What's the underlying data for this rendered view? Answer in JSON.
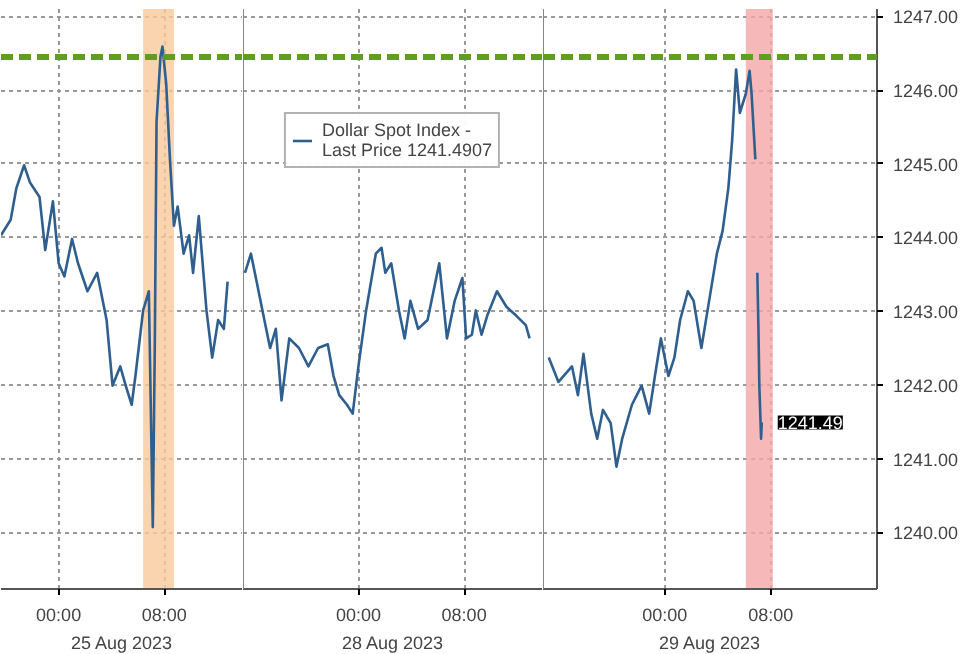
{
  "chart_data": [
    {
      "type": "line",
      "xlabel": "25 Aug 2023",
      "series": [
        {
          "color": "#2f5f8f",
          "x": [
            "2023-08-24T19:38",
            "2023-08-24T20:22",
            "2023-08-24T20:48",
            "2023-08-24T21:23",
            "2023-08-24T21:49",
            "2023-08-24T22:33",
            "2023-08-24T22:59",
            "2023-08-24T23:34",
            "2023-08-25T00:00",
            "2023-08-25T00:26",
            "2023-08-25T01:01",
            "2023-08-25T01:28",
            "2023-08-25T02:11",
            "2023-08-25T02:55",
            "2023-08-25T03:38",
            "2023-08-25T04:05",
            "2023-08-25T04:40",
            "2023-08-25T05:05",
            "2023-08-25T05:32",
            "2023-08-25T05:49",
            "2023-08-25T06:24",
            "2023-08-25T06:50",
            "2023-08-25T07:08",
            "2023-08-25T07:17",
            "2023-08-25T07:25",
            "2023-08-25T07:43",
            "2023-08-25T07:52",
            "2023-08-25T08:09",
            "2023-08-25T08:26",
            "2023-08-25T08:44",
            "2023-08-25T09:01",
            "2023-08-25T09:28",
            "2023-08-25T09:53",
            "2023-08-25T10:11",
            "2023-08-25T10:37",
            "2023-08-25T11:12",
            "2023-08-25T11:38",
            "2023-08-25T12:05",
            "2023-08-25T12:31",
            "2023-08-25T12:48"
          ],
          "values": [
            1244.03,
            1244.24,
            1244.67,
            1244.98,
            1244.75,
            1244.55,
            1243.83,
            1244.49,
            1243.65,
            1243.47,
            1243.98,
            1243.65,
            1243.27,
            1243.52,
            1242.88,
            1241.99,
            1242.25,
            1241.99,
            1241.73,
            1242.12,
            1243.01,
            1243.27,
            1240.07,
            1242.5,
            1245.57,
            1246.46,
            1246.59,
            1246.08,
            1245.06,
            1244.16,
            1244.42,
            1243.78,
            1244.03,
            1243.52,
            1244.29,
            1243.01,
            1242.37,
            1242.88,
            1242.76,
            1243.4
          ]
        }
      ],
      "xlim": [
        "2023-08-24T19:38",
        "2023-08-25T13:58"
      ],
      "xticks": [
        {
          "value": "2023-08-25T00:00",
          "label": "00:00"
        },
        {
          "value": "2023-08-25T08:00",
          "label": "08:00"
        }
      ],
      "ylim": [
        1239.23,
        1247.1
      ],
      "yticks": [
        1240,
        1241,
        1242,
        1243,
        1244,
        1245,
        1246,
        1247
      ],
      "bands": [
        {
          "axis": "x",
          "from": "2023-08-25T06:24",
          "to": "2023-08-25T08:44",
          "label": null,
          "color": "#f8c99a"
        }
      ],
      "ref_lines": [
        {
          "axis": "y",
          "value": 1246.45,
          "label": null,
          "color": "#5f9e1f",
          "line_style": "dashed"
        }
      ],
      "tick_labels": "x",
      "grid": true,
      "line_style": "solid"
    },
    {
      "type": "line",
      "xlabel": "28 Aug 2023",
      "series": [
        {
          "name": "Dollar Spot Index - Last Price 1241.4907",
          "color": "#2f5f8f",
          "x": [
            "2023-08-27T15:25",
            "2023-08-27T15:52",
            "2023-08-27T16:18",
            "2023-08-27T16:53",
            "2023-08-27T17:19",
            "2023-08-27T17:45",
            "2023-08-27T18:11",
            "2023-08-27T18:46",
            "2023-08-27T19:30",
            "2023-08-27T20:13",
            "2023-08-27T20:57",
            "2023-08-27T21:41",
            "2023-08-27T22:07",
            "2023-08-27T22:33",
            "2023-08-27T23:08",
            "2023-08-27T23:34",
            "2023-08-28T00:00",
            "2023-08-28T00:35",
            "2023-08-28T01:19",
            "2023-08-28T01:45",
            "2023-08-28T02:02",
            "2023-08-28T02:29",
            "2023-08-28T03:04",
            "2023-08-28T03:30",
            "2023-08-28T03:56",
            "2023-08-28T04:31",
            "2023-08-28T05:14",
            "2023-08-28T06:07",
            "2023-08-28T06:42",
            "2023-08-28T07:17",
            "2023-08-28T07:52",
            "2023-08-28T08:09",
            "2023-08-28T08:35",
            "2023-08-28T08:53",
            "2023-08-28T09:19",
            "2023-08-28T09:45",
            "2023-08-28T10:29",
            "2023-08-28T11:12",
            "2023-08-28T11:56",
            "2023-08-28T12:40",
            "2023-08-28T12:57"
          ],
          "values": [
            1243.52,
            1243.78,
            1243.4,
            1242.88,
            1242.5,
            1242.76,
            1241.79,
            1242.63,
            1242.5,
            1242.25,
            1242.5,
            1242.55,
            1242.12,
            1241.86,
            1241.73,
            1241.61,
            1242.25,
            1243.01,
            1243.78,
            1243.86,
            1243.52,
            1243.65,
            1243.01,
            1242.63,
            1243.14,
            1242.76,
            1242.88,
            1243.65,
            1242.63,
            1243.14,
            1243.45,
            1242.63,
            1242.68,
            1243.01,
            1242.68,
            1242.94,
            1243.27,
            1243.06,
            1242.94,
            1242.81,
            1242.63
          ]
        }
      ],
      "xlim": [
        "2023-08-27T15:16",
        "2023-08-28T13:58"
      ],
      "xticks": [
        {
          "value": "2023-08-28T00:00",
          "label": "00:00"
        },
        {
          "value": "2023-08-28T08:00",
          "label": "08:00"
        }
      ],
      "ylim": [
        1239.23,
        1247.1
      ],
      "yticks": [
        1240,
        1241,
        1242,
        1243,
        1244,
        1245,
        1246,
        1247
      ],
      "ref_lines": [
        {
          "axis": "y",
          "value": 1246.45,
          "label": null,
          "color": "#5f9e1f",
          "line_style": "dashed"
        }
      ],
      "tick_labels": "x",
      "grid": true,
      "legend": "top",
      "line_style": "solid"
    },
    {
      "type": "line",
      "xlabel": "29 Aug 2023",
      "series": [
        {
          "color": "#2f5f8f",
          "x": [
            "2023-08-28T15:16",
            "2023-08-28T16:00",
            "2023-08-28T17:01",
            "2023-08-28T17:28",
            "2023-08-28T17:53",
            "2023-08-28T18:28",
            "2023-08-28T18:55",
            "2023-08-28T19:21",
            "2023-08-28T19:56",
            "2023-08-28T20:22",
            "2023-08-28T20:48",
            "2023-08-28T21:32",
            "2023-08-28T22:16",
            "2023-08-28T22:50",
            "2023-08-28T23:16",
            "2023-08-28T23:43",
            "2023-08-29T00:17",
            "2023-08-29T00:44",
            "2023-08-29T01:10",
            "2023-08-29T01:45",
            "2023-08-29T02:11",
            "2023-08-29T02:46",
            "2023-08-29T03:21",
            "2023-08-29T03:56",
            "2023-08-29T04:22",
            "2023-08-29T04:48",
            "2023-08-29T05:05",
            "2023-08-29T05:23",
            "2023-08-29T05:40",
            "2023-08-29T06:07",
            "2023-08-29T06:24",
            "2023-08-29T06:33",
            "2023-08-29T06:50",
            "2023-08-29T06:55",
            "2023-08-29T06:59",
            "2023-08-29T07:04",
            "2023-08-29T07:08",
            "2023-08-29T07:16",
            "2023-08-29T07:19"
          ],
          "values": [
            1242.37,
            1242.04,
            1242.25,
            1241.86,
            1242.42,
            1241.61,
            1241.27,
            1241.66,
            1241.48,
            1240.89,
            1241.27,
            1241.73,
            1241.99,
            1241.61,
            1242.12,
            1242.63,
            1242.12,
            1242.37,
            1242.88,
            1243.27,
            1243.14,
            1242.5,
            1243.14,
            1243.78,
            1244.09,
            1244.67,
            1245.31,
            1246.28,
            1245.69,
            1245.95,
            1246.26,
            1245.95,
            1245.06,
            null,
            1243.52,
            1242.76,
            1241.99,
            1241.27,
            1241.49
          ]
        }
      ],
      "xlim": [
        "2023-08-28T14:50",
        "2023-08-29T16:00"
      ],
      "xticks": [
        {
          "value": "2023-08-29T00:00",
          "label": "00:00"
        },
        {
          "value": "2023-08-29T08:00",
          "label": "08:00"
        }
      ],
      "ylim": [
        1239.23,
        1247.1
      ],
      "yticks": [
        {
          "value": 1240,
          "label": "1240.00"
        },
        {
          "value": 1241,
          "label": "1241.00"
        },
        {
          "value": 1242,
          "label": "1242.00"
        },
        {
          "value": 1243,
          "label": "1243.00"
        },
        {
          "value": 1244,
          "label": "1244.00"
        },
        {
          "value": 1245,
          "label": "1245.00"
        },
        {
          "value": 1246,
          "label": "1246.00"
        },
        {
          "value": 1247,
          "label": "1247.00"
        }
      ],
      "bands": [
        {
          "axis": "x",
          "from": "2023-08-29T06:07",
          "to": "2023-08-29T08:09",
          "label": null,
          "color": "#f4a6a6"
        }
      ],
      "ref_lines": [
        {
          "axis": "y",
          "value": 1246.45,
          "label": null,
          "color": "#5f9e1f",
          "line_style": "dashed"
        }
      ],
      "annotations": [
        {
          "text": "1241.49",
          "x": "2023-08-29T07:19",
          "y": 1241.49
        }
      ],
      "grid": true,
      "line_style": "solid"
    }
  ]
}
